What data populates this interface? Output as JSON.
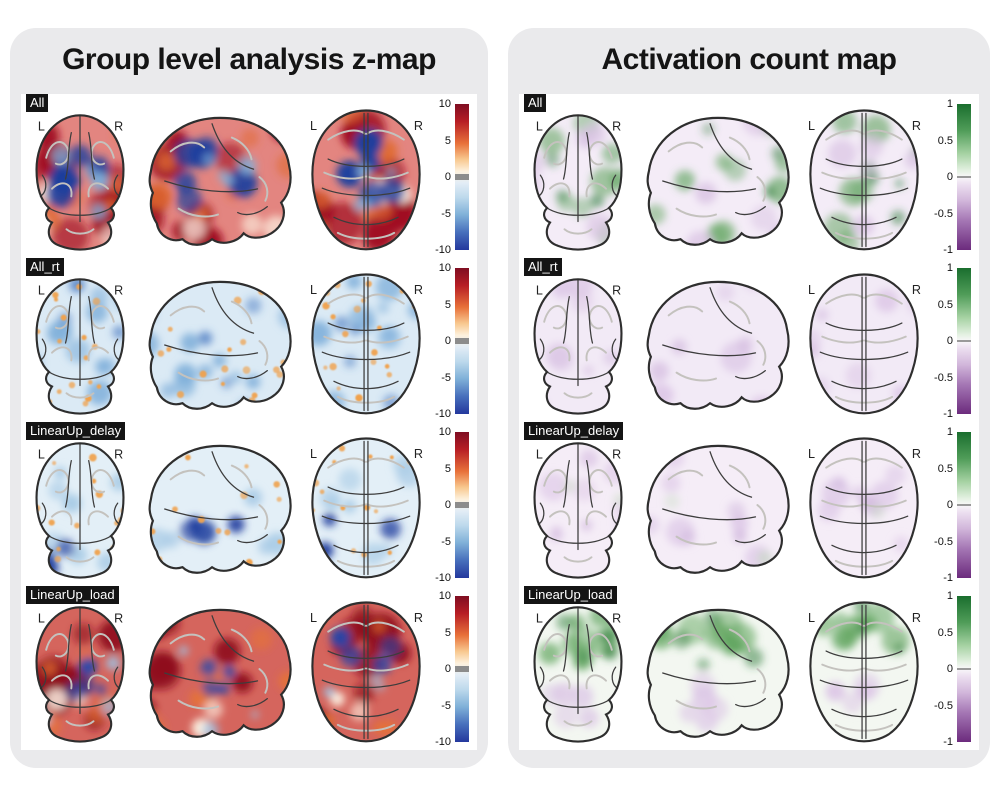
{
  "figure": {
    "background": "#ffffff",
    "panel_background": "#eaeaec"
  },
  "panels": [
    {
      "title": "Group level analysis z-map",
      "orientation": {
        "left": "L",
        "right": "R"
      },
      "colorbar": {
        "ticks": [
          "10",
          "5",
          "0",
          "-5",
          "-10"
        ],
        "zero_marker": {
          "type": "band",
          "color": "#8c8c8c"
        },
        "gradient": [
          [
            "#7f0d22",
            0
          ],
          [
            "#b71e25",
            12
          ],
          [
            "#e8713a",
            27
          ],
          [
            "#f8c88f",
            38
          ],
          [
            "#fdf1dd",
            46
          ],
          [
            "#e3edf6",
            54
          ],
          [
            "#bdd9ec",
            64
          ],
          [
            "#7fb0d8",
            76
          ],
          [
            "#476fbc",
            88
          ],
          [
            "#24389d",
            100
          ]
        ]
      },
      "rows": [
        {
          "label": "All",
          "pattern": {
            "base": "#d0342c",
            "base_opacity": 0.6,
            "groups": [
              {
                "color": "#a00f22",
                "count": 10,
                "rmin": 10,
                "rmax": 22,
                "opacity": 0.85,
                "zone": "any",
                "style": "soft"
              },
              {
                "color": "#e06a2e",
                "count": 8,
                "rmin": 6,
                "rmax": 14,
                "opacity": 0.7,
                "zone": "any",
                "style": "soft"
              },
              {
                "color": "#fdf3e4",
                "count": 3,
                "rmin": 8,
                "rmax": 14,
                "opacity": 0.85,
                "zone": "bottom",
                "style": "soft"
              },
              {
                "color": "#1d3f9e",
                "count": 6,
                "rmin": 7,
                "rmax": 16,
                "opacity": 0.85,
                "zone": "center",
                "style": "soft"
              },
              {
                "color": "#7fb2dc",
                "count": 4,
                "rmin": 5,
                "rmax": 10,
                "opacity": 0.8,
                "zone": "center",
                "style": "soft"
              }
            ]
          }
        },
        {
          "label": "All_rt",
          "pattern": {
            "base": "#cfe3f2",
            "base_opacity": 0.75,
            "groups": [
              {
                "color": "#7fafda",
                "count": 10,
                "rmin": 6,
                "rmax": 14,
                "opacity": 0.75,
                "zone": "any",
                "style": "soft"
              },
              {
                "color": "#3b6fbd",
                "count": 5,
                "rmin": 4,
                "rmax": 9,
                "opacity": 0.6,
                "zone": "any",
                "style": "soft"
              },
              {
                "color": "#f0a24e",
                "count": 22,
                "rmin": 2,
                "rmax": 4,
                "opacity": 0.9,
                "zone": "any",
                "style": "dot"
              }
            ]
          }
        },
        {
          "label": "LinearUp_delay",
          "pattern": {
            "base": "#dcebf5",
            "base_opacity": 0.8,
            "groups": [
              {
                "color": "#a8cbe6",
                "count": 8,
                "rmin": 6,
                "rmax": 13,
                "opacity": 0.8,
                "zone": "any",
                "style": "soft"
              },
              {
                "color": "#22409f",
                "count": 4,
                "rmin": 7,
                "rmax": 13,
                "opacity": 0.85,
                "zone": "bottom",
                "style": "soft"
              },
              {
                "color": "#f0a24e",
                "count": 20,
                "rmin": 2,
                "rmax": 4,
                "opacity": 0.9,
                "zone": "any",
                "style": "dot"
              }
            ]
          }
        },
        {
          "label": "LinearUp_load",
          "pattern": {
            "base": "#c52a1f",
            "base_opacity": 0.72,
            "groups": [
              {
                "color": "#8f0e1e",
                "count": 9,
                "rmin": 9,
                "rmax": 20,
                "opacity": 0.85,
                "zone": "any",
                "style": "soft"
              },
              {
                "color": "#e8752f",
                "count": 7,
                "rmin": 5,
                "rmax": 12,
                "opacity": 0.75,
                "zone": "any",
                "style": "soft"
              },
              {
                "color": "#fdf3e4",
                "count": 2,
                "rmin": 7,
                "rmax": 12,
                "opacity": 0.8,
                "zone": "bottom",
                "style": "soft"
              },
              {
                "color": "#2447ad",
                "count": 4,
                "rmin": 6,
                "rmax": 12,
                "opacity": 0.8,
                "zone": "center",
                "style": "soft"
              },
              {
                "color": "#9cc3e4",
                "count": 3,
                "rmin": 4,
                "rmax": 9,
                "opacity": 0.8,
                "zone": "any",
                "style": "soft"
              }
            ]
          }
        }
      ]
    },
    {
      "title": "Activation count map",
      "orientation": {
        "left": "L",
        "right": "R"
      },
      "colorbar": {
        "ticks": [
          "1",
          "0.5",
          "0",
          "-0.5",
          "-1"
        ],
        "zero_marker": {
          "type": "line",
          "color": "#9a9a9a"
        },
        "gradient": [
          [
            "#1a6e2e",
            0
          ],
          [
            "#4f9c58",
            18
          ],
          [
            "#a6d2a3",
            34
          ],
          [
            "#e6f2e4",
            46
          ],
          [
            "#f9f7fa",
            50
          ],
          [
            "#ecdff0",
            55
          ],
          [
            "#d2b7db",
            66
          ],
          [
            "#a476b4",
            80
          ],
          [
            "#6c2b7d",
            100
          ]
        ]
      },
      "rows": [
        {
          "label": "All",
          "pattern": {
            "base": "#ecdff1",
            "base_opacity": 0.6,
            "groups": [
              {
                "color": "#5ba25a",
                "count": 9,
                "rmin": 8,
                "rmax": 16,
                "opacity": 0.55,
                "zone": "any",
                "style": "soft"
              },
              {
                "color": "#2f7d3b",
                "count": 4,
                "rmin": 4,
                "rmax": 9,
                "opacity": 0.5,
                "zone": "any",
                "style": "soft"
              },
              {
                "color": "#d9c3e3",
                "count": 5,
                "rmin": 8,
                "rmax": 16,
                "opacity": 0.7,
                "zone": "any",
                "style": "soft"
              }
            ]
          }
        },
        {
          "label": "All_rt",
          "pattern": {
            "base": "#eadcf0",
            "base_opacity": 0.6,
            "groups": [
              {
                "color": "#dcc6e6",
                "count": 6,
                "rmin": 8,
                "rmax": 16,
                "opacity": 0.7,
                "zone": "any",
                "style": "soft"
              },
              {
                "color": "#cdb0da",
                "count": 3,
                "rmin": 5,
                "rmax": 10,
                "opacity": 0.5,
                "zone": "any",
                "style": "soft"
              }
            ]
          }
        },
        {
          "label": "LinearUp_delay",
          "pattern": {
            "base": "#ecdff1",
            "base_opacity": 0.55,
            "groups": [
              {
                "color": "#dcc6e6",
                "count": 6,
                "rmin": 8,
                "rmax": 16,
                "opacity": 0.65,
                "zone": "any",
                "style": "soft"
              },
              {
                "color": "#cdb0da",
                "count": 3,
                "rmin": 5,
                "rmax": 10,
                "opacity": 0.55,
                "zone": "center",
                "style": "soft"
              },
              {
                "color": "#bcd8b4",
                "count": 2,
                "rmin": 5,
                "rmax": 9,
                "opacity": 0.4,
                "zone": "any",
                "style": "soft"
              }
            ]
          }
        },
        {
          "label": "LinearUp_load",
          "pattern": {
            "base": "#e8f0e3",
            "base_opacity": 0.5,
            "groups": [
              {
                "color": "#5ba25a",
                "count": 9,
                "rmin": 8,
                "rmax": 16,
                "opacity": 0.6,
                "zone": "top",
                "style": "soft"
              },
              {
                "color": "#2f7d3b",
                "count": 4,
                "rmin": 5,
                "rmax": 10,
                "opacity": 0.55,
                "zone": "top",
                "style": "soft"
              },
              {
                "color": "#dcc6e6",
                "count": 5,
                "rmin": 8,
                "rmax": 14,
                "opacity": 0.7,
                "zone": "bottom",
                "style": "soft"
              }
            ]
          }
        }
      ]
    }
  ],
  "chart_data": [
    {
      "type": "heatmap",
      "title": "Group level analysis z-map",
      "figure_kind": "glass-brain statistical maps",
      "conditions": [
        "All",
        "All_rt",
        "LinearUp_delay",
        "LinearUp_load"
      ],
      "views": [
        "coronal",
        "sagittal",
        "axial"
      ],
      "orientation_labels": [
        "L",
        "R"
      ],
      "colorbar_range": [
        -10,
        10
      ],
      "colorbar_ticks": [
        10,
        5,
        0,
        -5,
        -10
      ],
      "colormap": "red/orange = positive z, blue = negative z, gray threshold band at 0",
      "pattern_summary": {
        "All": "widespread strong positive (dark red) activation with negative (dark blue) clusters in medial/ventricular and lateral-occipital regions",
        "All_rt": "weak negative (light blue) map with scattered small positive (orange) speckles",
        "LinearUp_delay": "weak negative (light blue) map with scattered orange speckles and a strong negative (dark blue) occipital cluster",
        "LinearUp_load": "widespread strong positive (dark red) activation with small negative (blue) central clusters"
      }
    },
    {
      "type": "heatmap",
      "title": "Activation count map",
      "figure_kind": "glass-brain count maps",
      "conditions": [
        "All",
        "All_rt",
        "LinearUp_delay",
        "LinearUp_load"
      ],
      "views": [
        "coronal",
        "sagittal",
        "axial"
      ],
      "orientation_labels": [
        "L",
        "R"
      ],
      "colorbar_range": [
        -1,
        1
      ],
      "colorbar_ticks": [
        1,
        0.5,
        0,
        -0.5,
        -1
      ],
      "colormap": "green = positive count, purple = negative count, white at 0",
      "pattern_summary": {
        "All": "moderate positive counts (green) in frontal and parietal clusters over a faint negative (light purple) background",
        "All_rt": "near-zero counts; faint negative (light purple) wash",
        "LinearUp_delay": "near-zero counts; faint light-purple wash with slight green hints",
        "LinearUp_load": "moderate positive counts (green) in superior/frontal regions with faint purple inferiorly"
      }
    }
  ]
}
